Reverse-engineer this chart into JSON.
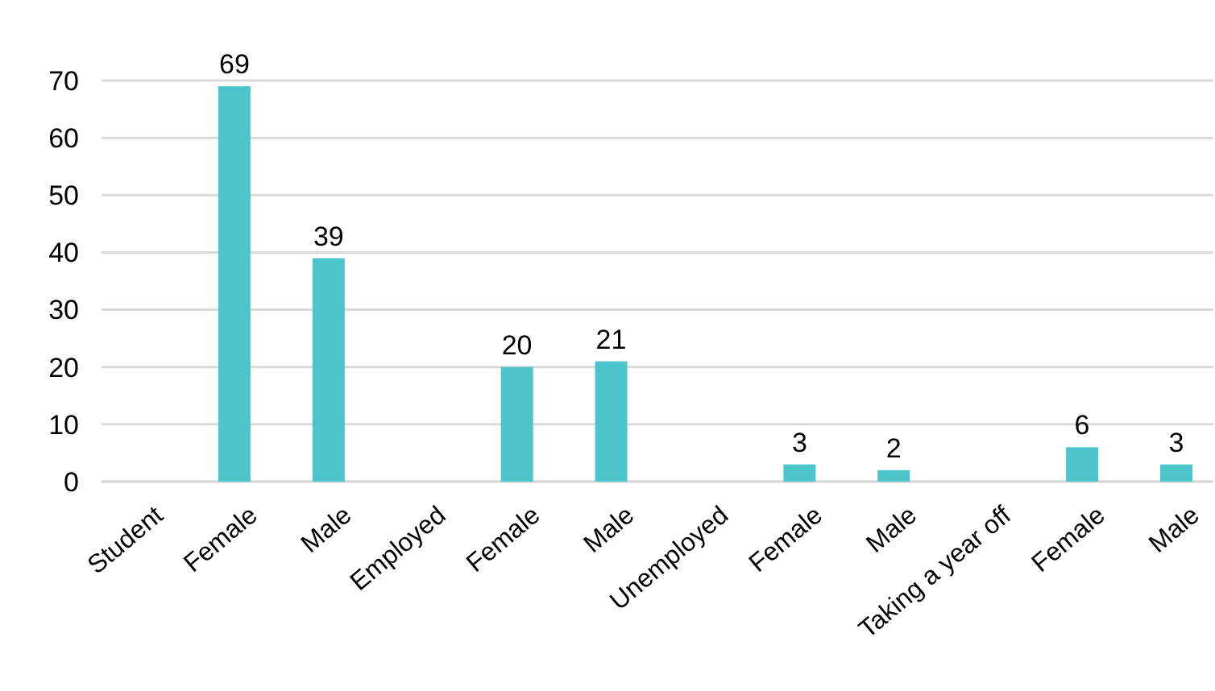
{
  "chart_data": {
    "type": "bar",
    "categories": [
      "Student",
      "Female",
      "Male",
      "Employed",
      "Female",
      "Male",
      "Unemployed",
      "Female",
      "Male",
      "Taking a year off",
      "Female",
      "Male"
    ],
    "values": [
      null,
      69,
      39,
      null,
      20,
      21,
      null,
      3,
      2,
      null,
      6,
      3
    ],
    "color": "#4cc4cb",
    "ylim": [
      0,
      70
    ],
    "yticks": [
      0,
      10,
      20,
      30,
      40,
      50,
      60,
      70
    ],
    "grid": "y",
    "data_labels": true
  }
}
